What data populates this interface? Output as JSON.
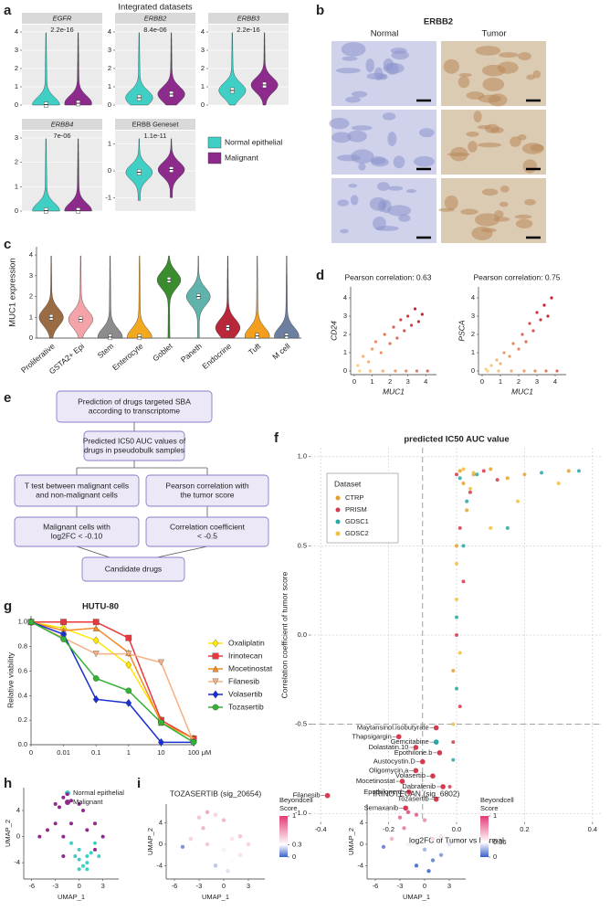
{
  "panel_labels": [
    "a",
    "b",
    "c",
    "d",
    "e",
    "f",
    "g",
    "h",
    "i"
  ],
  "histology": {
    "title": "ERBB2",
    "columns": [
      "Normal",
      "Tumor"
    ]
  },
  "flowchart": {
    "nodes": [
      {
        "lines": [
          "Prediction of drugs targeted SBA",
          "according to transcriptome"
        ]
      },
      {
        "lines": [
          "Predicted IC50 AUC values of",
          "drugs in pseudobulk samples"
        ]
      },
      {
        "lines": [
          "T test between malignant cells",
          "and non-malignant cells"
        ]
      },
      {
        "lines": [
          "Pearson correlation with",
          "the tumor score"
        ]
      },
      {
        "lines": [
          "Malignant cells with",
          "log2FC < -0.10"
        ]
      },
      {
        "lines": [
          "Correlation coefficient",
          "< -0.5"
        ]
      },
      {
        "lines": [
          "Candidate drugs"
        ]
      }
    ]
  },
  "chart_data": [
    {
      "type": "violin_grid",
      "title": "Integrated datasets",
      "groups": [
        {
          "name": "Normal epithelial",
          "color": "#3fcfc4"
        },
        {
          "name": "Malignant",
          "color": "#8c2b8c"
        }
      ],
      "panels": [
        {
          "name": "EGFR",
          "pvalue": "2.2e-16",
          "ylim": [
            0,
            4.4
          ],
          "yticks": [
            0,
            1,
            2,
            3,
            4
          ],
          "medians": [
            0.02,
            0.1
          ]
        },
        {
          "name": "ERBB2",
          "pvalue": "8.4e-06",
          "ylim": [
            0,
            4.4
          ],
          "yticks": [
            0,
            1,
            2,
            3,
            4
          ],
          "medians": [
            0.4,
            0.6
          ]
        },
        {
          "name": "ERBB3",
          "pvalue": "2.2e-16",
          "ylim": [
            0,
            4.4
          ],
          "yticks": [
            0,
            1,
            2,
            3,
            4
          ],
          "medians": [
            0.8,
            1.1
          ]
        },
        {
          "name": "ERBB4",
          "pvalue": "7e-06",
          "ylim": [
            0,
            3.3
          ],
          "yticks": [
            0,
            1,
            2,
            3
          ],
          "medians": [
            0.02,
            0.02
          ]
        },
        {
          "name": "ERBB Geneset",
          "pvalue": "1.1e-11",
          "ylim": [
            -1.5,
            1.5
          ],
          "yticks": [
            -1,
            0,
            1
          ],
          "medians": [
            -0.05,
            0.05
          ]
        }
      ]
    },
    {
      "type": "violin",
      "ylabel": "MUC1 expression",
      "categories": [
        "Proliferative",
        "GSTA2+ Epi",
        "Stem",
        "Enterocyte",
        "Goblet",
        "Paneth",
        "Endocrine",
        "Tuft",
        "M cell"
      ],
      "colors": [
        "#9b6b43",
        "#f4a3a8",
        "#8c8c8c",
        "#f3a91f",
        "#3a8c2e",
        "#5fb3aa",
        "#b8283a",
        "#f29e1f",
        "#6d7fa0"
      ],
      "medians": [
        1.0,
        0.9,
        0.05,
        0.05,
        2.8,
        2.0,
        0.5,
        0.1,
        0.1
      ],
      "ylim": [
        0,
        4.4
      ],
      "yticks": [
        0,
        1,
        2,
        3,
        4
      ]
    },
    {
      "type": "scatter",
      "title": "Pearson correlation: 0.63",
      "xlabel": "MUC1",
      "ylabel": "CD24",
      "xlim": [
        -0.2,
        4.6
      ],
      "ylim": [
        -0.2,
        4.6
      ],
      "xticks": [
        0,
        1,
        2,
        3,
        4
      ],
      "yticks": [
        0,
        1,
        2,
        3,
        4
      ],
      "x": [
        0.2,
        0.5,
        0.8,
        1.0,
        1.2,
        1.5,
        1.7,
        2.0,
        2.2,
        2.4,
        2.6,
        2.8,
        3.0,
        3.2,
        3.4,
        3.6,
        3.8,
        0.3,
        0.9,
        1.6,
        2.3,
        2.9,
        3.5,
        4.1
      ],
      "y": [
        0.3,
        0.8,
        0.5,
        1.2,
        1.6,
        1.0,
        2.0,
        1.5,
        2.4,
        1.8,
        2.8,
        2.2,
        3.0,
        2.5,
        3.4,
        2.7,
        3.1,
        0,
        0,
        0,
        0,
        0,
        0,
        0
      ]
    },
    {
      "type": "scatter",
      "title": "Pearson correlation: 0.75",
      "xlabel": "MUC1",
      "ylabel": "PSCA",
      "xlim": [
        -0.2,
        4.6
      ],
      "ylim": [
        -0.2,
        4.6
      ],
      "xticks": [
        0,
        1,
        2,
        3,
        4
      ],
      "yticks": [
        0,
        1,
        2,
        3,
        4
      ],
      "x": [
        0.2,
        0.5,
        0.8,
        1.0,
        1.2,
        1.5,
        1.7,
        2.0,
        2.2,
        2.4,
        2.6,
        2.8,
        3.0,
        3.2,
        3.4,
        3.6,
        3.8,
        0.3,
        0.9,
        1.6,
        2.3,
        2.9,
        3.5,
        4.1
      ],
      "y": [
        0.1,
        0.3,
        0.6,
        0.4,
        1.0,
        0.8,
        1.5,
        1.2,
        2.0,
        1.6,
        2.6,
        2.2,
        3.2,
        2.8,
        3.6,
        3.0,
        4.0,
        0,
        0,
        0,
        0,
        0,
        0,
        0
      ]
    },
    {
      "type": "scatter_annotated",
      "title": "predicted IC50 AUC value",
      "xlabel": "log2FC of Tumor vs Normal",
      "ylabel": "Correlation coefficient of tumor score",
      "legend_title": "Dataset",
      "grid": true,
      "xlim": [
        -0.43,
        0.43
      ],
      "ylim": [
        -1.05,
        1.05
      ],
      "xticks": [
        -0.4,
        -0.2,
        {
          "value": 0,
          "label": "0.0"
        },
        0.2,
        0.4
      ],
      "yticks": [
        {
          "value": -1,
          "label": "-1.0"
        },
        -0.5,
        {
          "value": 0,
          "label": "0.0"
        },
        0.5,
        {
          "value": 1,
          "label": "1.0"
        }
      ],
      "threshold_x": -0.1,
      "threshold_y": -0.5,
      "series": [
        {
          "name": "CTRP",
          "color": "#e5a12b",
          "x": [
            0.01,
            0.02,
            0.05,
            0.1,
            0.15,
            0.0,
            -0.01,
            0.03,
            0.2,
            0.33
          ],
          "y": [
            0.92,
            0.85,
            0.9,
            0.93,
            0.88,
            0.5,
            -0.2,
            0.7,
            0.9,
            0.92
          ]
        },
        {
          "name": "PRISM",
          "color": "#d53a4f",
          "x": [
            0.0,
            0.01,
            0.02,
            -0.01,
            0.04,
            0.08,
            0.0,
            -0.02,
            0.12,
            0.01
          ],
          "y": [
            0.9,
            0.6,
            0.3,
            -0.6,
            0.8,
            0.92,
            0.0,
            -0.85,
            0.87,
            -0.4
          ]
        },
        {
          "name": "GDSC1",
          "color": "#27a6a6",
          "x": [
            0.01,
            0.03,
            0.0,
            0.06,
            0.25,
            0.36,
            -0.01,
            0.02,
            0.15,
            0.0
          ],
          "y": [
            0.88,
            0.75,
            0.1,
            0.9,
            0.91,
            0.92,
            -0.7,
            0.5,
            0.6,
            -0.3
          ]
        },
        {
          "name": "GDSC2",
          "color": "#f3c03c",
          "x": [
            0.02,
            0.0,
            0.04,
            0.1,
            0.3,
            0.01,
            -0.01,
            0.05,
            0.18,
            0.0
          ],
          "y": [
            0.93,
            0.4,
            0.82,
            0.6,
            0.85,
            -0.1,
            -0.5,
            0.91,
            0.75,
            0.2
          ]
        }
      ],
      "annotations": [
        {
          "label": "Maytansinol.isobutyrate",
          "x": -0.06,
          "y": -0.52,
          "color": "#d53a4f"
        },
        {
          "label": "Thapsigargin",
          "x": -0.17,
          "y": -0.57,
          "color": "#d53a4f"
        },
        {
          "label": "Gemcitabine",
          "x": -0.06,
          "y": -0.6,
          "color": "#27a6a6"
        },
        {
          "label": "Dolastatin.10",
          "x": -0.12,
          "y": -0.63,
          "color": "#d53a4f"
        },
        {
          "label": "Epothilone.b",
          "x": -0.05,
          "y": -0.66,
          "color": "#d53a4f"
        },
        {
          "label": "Austocystin.D",
          "x": -0.1,
          "y": -0.71,
          "color": "#d53a4f"
        },
        {
          "label": "Oligomycin.a",
          "x": -0.12,
          "y": -0.76,
          "color": "#d53a4f"
        },
        {
          "label": "Volasertib",
          "x": -0.07,
          "y": -0.79,
          "color": "#d53a4f"
        },
        {
          "label": "Mocetinostat",
          "x": -0.16,
          "y": -0.82,
          "color": "#d53a4f"
        },
        {
          "label": "Dabrafenib",
          "x": -0.04,
          "y": -0.85,
          "color": "#d53a4f"
        },
        {
          "label": "Epothilone.d",
          "x": -0.14,
          "y": -0.88,
          "color": "#d53a4f"
        },
        {
          "label": "Tozasertib",
          "x": -0.06,
          "y": -0.92,
          "color": "#d53a4f"
        },
        {
          "label": "Semaxanib",
          "x": -0.15,
          "y": -0.97,
          "color": "#d53a4f"
        },
        {
          "label": "Filanesib",
          "x": -0.38,
          "y": -0.9,
          "color": "#d53a4f"
        }
      ]
    },
    {
      "type": "line",
      "title": "HUTU-80",
      "ylabel": "Relative viability",
      "categories": [
        0,
        0.01,
        0.1,
        1,
        10,
        100
      ],
      "x_unit": "μM",
      "ylim": [
        0,
        1.05
      ],
      "yticks": [
        {
          "value": 0,
          "label": "0.0"
        },
        0.2,
        0.4,
        0.6,
        0.8,
        {
          "value": 1,
          "label": "1.0"
        }
      ],
      "series": [
        {
          "name": "Oxaliplatin",
          "color": "#ffe600",
          "marker": "diamond",
          "values": [
            1,
            0.95,
            0.85,
            0.65,
            0.2,
            0.05
          ]
        },
        {
          "name": "Irinotecan",
          "color": "#e8383d",
          "marker": "square",
          "values": [
            1,
            1.0,
            1.0,
            0.87,
            0.2,
            0.05
          ]
        },
        {
          "name": "Mocetinostat",
          "color": "#f28c28",
          "marker": "triangle",
          "values": [
            1,
            0.93,
            0.95,
            0.75,
            0.18,
            0.05
          ]
        },
        {
          "name": "Filanesib",
          "color": "#f5b183",
          "marker": "triangle-down",
          "values": [
            1,
            0.87,
            0.74,
            0.74,
            0.67,
            0.02
          ]
        },
        {
          "name": "Volasertib",
          "color": "#1a2fd0",
          "marker": "diamond",
          "values": [
            1,
            0.9,
            0.37,
            0.34,
            0.02,
            0.02
          ]
        },
        {
          "name": "Tozasertib",
          "color": "#33b233",
          "marker": "circle",
          "values": [
            1,
            0.86,
            0.54,
            0.44,
            0.18,
            0.02
          ]
        }
      ]
    },
    {
      "type": "umap",
      "xlabel": "UMAP_1",
      "ylabel": "UMAP_2",
      "xlim": [
        -7,
        5
      ],
      "ylim": [
        -6.5,
        7.5
      ],
      "xticks": [
        -6,
        -3,
        0,
        3
      ],
      "yticks": [
        -4,
        0,
        4
      ],
      "series": [
        {
          "name": "Normal epithelial",
          "color": "#3fcfc4",
          "x": [
            0,
            1,
            0,
            1,
            2,
            0.5,
            -1,
            1.5,
            0,
            1,
            2.5,
            -0.5
          ],
          "y": [
            -2,
            -4,
            -5,
            -3,
            -1,
            -4.5,
            -1,
            -2.5,
            -3.5,
            -5,
            -3,
            -3
          ]
        },
        {
          "name": "Malignant",
          "color": "#8c2b8c",
          "x": [
            -3,
            -2,
            -1,
            -2.5,
            0,
            -4,
            -2,
            -3,
            1,
            2,
            -1,
            -5,
            3,
            2,
            -2,
            -1.5,
            0.5
          ],
          "y": [
            5,
            6,
            5.5,
            4.5,
            5,
            1,
            0,
            2,
            1,
            2,
            2,
            0,
            0,
            -2,
            -3,
            6.5,
            4
          ]
        }
      ]
    },
    {
      "type": "umap_score",
      "title": "TOZASERTIB (sig_20654)",
      "xlabel": "UMAP_1",
      "ylabel": "UMAP_2",
      "xlim": [
        -7,
        5
      ],
      "ylim": [
        -6.5,
        7.5
      ],
      "xticks": [
        -6,
        -3,
        0,
        3
      ],
      "yticks": [
        -4,
        0,
        4
      ],
      "legend_title": [
        "Beyondcell",
        "Score"
      ],
      "colorbar_ticks": [
        0,
        0.3,
        1
      ],
      "colors": [
        "#3b5fc8",
        "#ffffff",
        "#e23b77"
      ],
      "x": [
        -3,
        -2,
        -1,
        0,
        1,
        2,
        -4,
        -2,
        0,
        1,
        -1,
        2,
        3,
        -5,
        -2.5,
        0.5
      ],
      "y": [
        5,
        6,
        5.5,
        4.5,
        1,
        1.5,
        1,
        0,
        -1,
        -3,
        -4,
        -2,
        0,
        -0.5,
        3,
        -5
      ],
      "score": [
        0.5,
        0.6,
        0.45,
        0.55,
        0.4,
        0.5,
        0.45,
        0.5,
        0.35,
        0.3,
        0.2,
        0.4,
        0.45,
        0.1,
        0.55,
        0.25
      ]
    },
    {
      "type": "umap_score",
      "title": "IRINOTECAN (sig_6802)",
      "xlabel": "UMAP_1",
      "ylabel": "UMAP_2",
      "xlim": [
        -7,
        5
      ],
      "ylim": [
        -6.5,
        7.5
      ],
      "xticks": [
        -6,
        -3,
        0,
        3
      ],
      "yticks": [
        -4,
        0,
        4
      ],
      "legend_title": [
        "Beyondcell",
        "Score"
      ],
      "colorbar_ticks": [
        0,
        0.36,
        1
      ],
      "colors": [
        "#3b5fc8",
        "#ffffff",
        "#e23b77"
      ],
      "x": [
        -3,
        -2,
        -1,
        0,
        1,
        2,
        -4,
        -2,
        0,
        1,
        -1,
        2,
        3,
        -5,
        -2.5,
        0.5
      ],
      "y": [
        5,
        6,
        5.5,
        4.5,
        1,
        1.5,
        1,
        0,
        -1,
        -3,
        -4,
        -2,
        0,
        -0.5,
        3,
        -5
      ],
      "score": [
        0.8,
        0.9,
        0.85,
        0.7,
        0.5,
        0.45,
        0.6,
        0.4,
        0.2,
        0.1,
        0.05,
        0.15,
        0.3,
        0.1,
        0.75,
        0.05
      ]
    }
  ]
}
